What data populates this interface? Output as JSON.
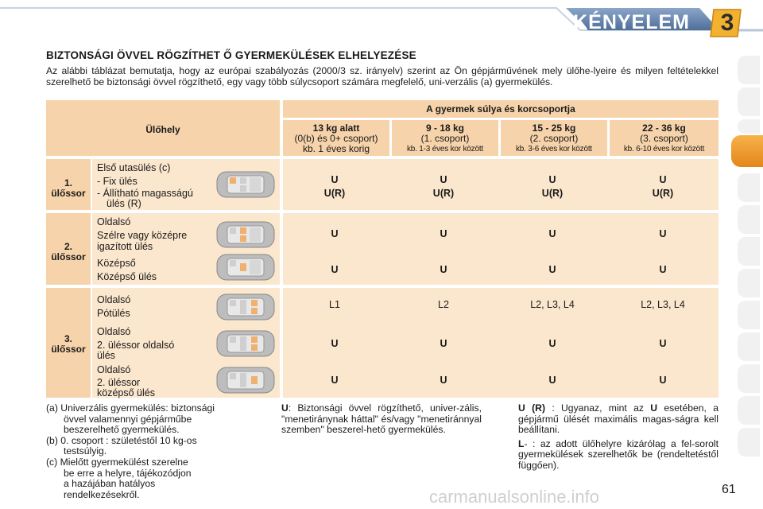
{
  "header": {
    "chapter_title": "KÉNYELEM",
    "chapter_number": "3"
  },
  "section_title": "BIZTONSÁGI ÖVVEL RÖGZÍTHET Ő GYERMEKÜLÉSEK ELHELYEZÉSE",
  "intro": "Az alábbi táblázat bemutatja, hogy az európai szabályozás (2000/3 sz. irányelv) szerint az Ön gépjárművének mely ülőhe-lyeire és milyen feltételekkel szerelhető be biztonsági övvel rögzíthető, egy vagy több súlycsoport számára megfelelő, uni-verzális (a) gyermekülés.",
  "table": {
    "seat_header": "Ülőhely",
    "group_header": "A gyermek súlya és korcsoportja",
    "columns": [
      {
        "weight": "13 kg alatt",
        "group": "(0(b) és 0+ csoport)",
        "age": "kb. 1 éves korig"
      },
      {
        "weight": "9 - 18 kg",
        "group": "(1. csoport)",
        "age": "kb. 1-3 éves kor között"
      },
      {
        "weight": "15 - 25 kg",
        "group": "(2. csoport)",
        "age": "kb. 3-6 éves kor között"
      },
      {
        "weight": "22 - 36 kg",
        "group": "(3. csoport)",
        "age": "kb. 6-10 éves kor között"
      }
    ],
    "row1": {
      "label": "1.\nülőssor",
      "title": "Első utasülés (c)",
      "line1": "- Fix ülés",
      "line2": "- Állítható magasságú",
      "line3": "ülés (R)",
      "top": [
        "U",
        "U",
        "U",
        "U"
      ],
      "bottom": [
        "U(R)",
        "U(R)",
        "U(R)",
        "U(R)"
      ]
    },
    "row2": {
      "label": "2.\nülőssor",
      "a_title": "Oldalsó",
      "a_sub1": "Szélre vagy középre",
      "a_sub2": "igazított ülés",
      "a_values": [
        "U",
        "U",
        "U",
        "U"
      ],
      "b_title": "Középső",
      "b_sub": "Középső ülés",
      "b_values": [
        "U",
        "U",
        "U",
        "U"
      ]
    },
    "row3": {
      "label": "3.\nülőssor",
      "a_title": "Oldalsó",
      "a_sub": "Pótülés",
      "a_values": [
        "L1",
        "L2",
        "L2, L3, L4",
        "L2, L3, L4"
      ],
      "b_title": "Oldalsó",
      "b_sub1": "2. üléssor oldalsó",
      "b_sub2": "ülés",
      "b_values": [
        "U",
        "U",
        "U",
        "U"
      ],
      "c_title": "Oldalsó",
      "c_sub1": "2. üléssor",
      "c_sub2": "középső ülés",
      "c_values": [
        "U",
        "U",
        "U",
        "U"
      ]
    }
  },
  "footnotes": {
    "a": "(a)  Univerzális gyermekülés: biztonsági",
    "a2": "övvel valamennyi gépjárműbe",
    "a3": "beszerelhető gyermekülés.",
    "b": "(b)  0. csoport : születéstől 10 kg-os",
    "b2": "testsúlyig.",
    "c": "(c)  Mielőtt gyermekülést szerelne",
    "c2": "be erre a helyre, tájékozódjon",
    "c3": "a hazájában hatályos",
    "c4": "rendelkezésekről."
  },
  "legend": {
    "u_key": "U",
    "u_text": ": Biztonsági övvel rögzíthető, univer-zális, \"menetiránynak háttal\" és/vagy \"menetiránnyal szemben\" beszerel-hető gyermekülés.",
    "ur_key": "U (R)",
    "ur_text1": " : Ugyanaz, mint az ",
    "ur_key2": "U",
    "ur_text2": " esetében, a gépjármű ülését maximális magas-ságra kell beállítani.",
    "l_key": "L",
    "l_text": "- : az adott ülőhelyre kizárólag a fel-sorolt gyermekülések szerelhetők be (rendeltetéstől függően)."
  },
  "page_number": "61",
  "watermark": "carmanualsonline.info"
}
